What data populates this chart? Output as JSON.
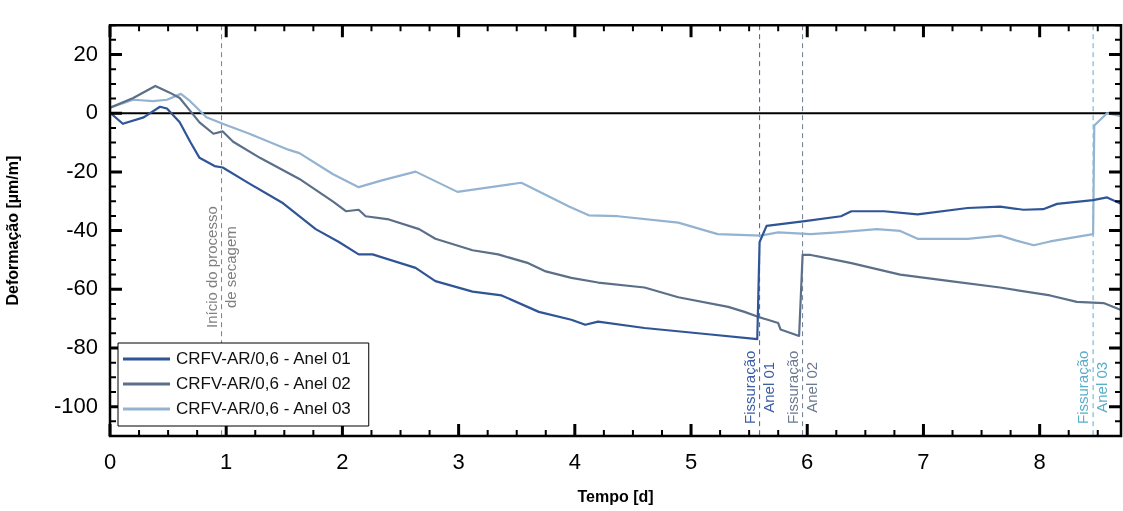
{
  "chart_data": {
    "type": "line",
    "xlabel": "Tempo [d]",
    "ylabel": "Deformação [µm/m]",
    "xlim": [
      0,
      8.7
    ],
    "xticks": [
      0,
      1,
      2,
      3,
      4,
      5,
      6,
      7,
      8
    ],
    "ylim": [
      -110,
      30
    ],
    "yticks": [
      -100,
      -80,
      -60,
      -40,
      -20,
      0,
      20
    ],
    "grid": false,
    "legend": "bottom left",
    "marker": "none",
    "line_style": "solid",
    "series": [
      {
        "name": "CRFV-AR/0,6 - Anel 01",
        "color": "#2f5597",
        "x": [
          0,
          0.11,
          0.29,
          0.43,
          0.49,
          0.6,
          0.69,
          0.77,
          0.9,
          0.97,
          1.2,
          1.49,
          1.77,
          1.97,
          2.14,
          2.26,
          2.63,
          2.8,
          3.12,
          3.37,
          3.69,
          3.97,
          4.09,
          4.2,
          4.6,
          5.17,
          5.57,
          5.59,
          5.65,
          5.98,
          6.29,
          6.38,
          6.66,
          6.95,
          7.38,
          7.66,
          7.86,
          8.03,
          8.15,
          8.46,
          8.58,
          8.69
        ],
        "values": [
          0.2,
          -3.6,
          -1.4,
          2.2,
          1.6,
          -3.1,
          -9.7,
          -15.2,
          -18,
          -18.5,
          -24,
          -30.7,
          -39.5,
          -43.9,
          -48.1,
          -48.1,
          -52.7,
          -57.2,
          -60.8,
          -62.1,
          -67.7,
          -70.4,
          -72.1,
          -71,
          -73.2,
          -75.4,
          -77,
          -43.9,
          -38.4,
          -36.8,
          -35.1,
          -33.4,
          -33.4,
          -34.5,
          -32.3,
          -31.8,
          -32.9,
          -32.7,
          -30.9,
          -29.6,
          -28.7,
          -30.7
        ]
      },
      {
        "name": "CRFV-AR/0,6 - Anel 02",
        "color": "#5c6f89",
        "x": [
          0,
          0.2,
          0.39,
          0.51,
          0.6,
          0.69,
          0.77,
          0.89,
          0.97,
          1.06,
          1.29,
          1.63,
          1.92,
          2.03,
          2.14,
          2.2,
          2.4,
          2.66,
          2.8,
          3.12,
          3.34,
          3.6,
          3.75,
          3.97,
          4.2,
          4.6,
          4.89,
          5.32,
          5.46,
          5.57,
          5.66,
          5.75,
          5.77,
          5.93,
          5.96,
          6.03,
          6.38,
          6.8,
          7.23,
          7.66,
          8.09,
          8.32,
          8.55,
          8.69
        ],
        "values": [
          1.9,
          5.2,
          9.3,
          7.1,
          5.2,
          0.8,
          -3.1,
          -7,
          -6.2,
          -9.7,
          -15.2,
          -22.4,
          -30.1,
          -33.4,
          -32.9,
          -35.1,
          -36.2,
          -39.5,
          -42.8,
          -46.7,
          -48.1,
          -51.1,
          -53.9,
          -56.1,
          -57.7,
          -59.4,
          -62.7,
          -66,
          -67.7,
          -69.3,
          -70.4,
          -71.5,
          -73.7,
          -75.9,
          -48.3,
          -48.3,
          -51.1,
          -55,
          -57.2,
          -59.4,
          -62.1,
          -64.3,
          -64.7,
          -66.9
        ]
      },
      {
        "name": "CRFV-AR/0,6 - Anel 03",
        "color": "#93b3d0",
        "x": [
          0,
          0.2,
          0.37,
          0.49,
          0.61,
          0.69,
          0.83,
          0.97,
          1.2,
          1.54,
          1.63,
          1.92,
          2.14,
          2.34,
          2.63,
          2.99,
          3.54,
          3.95,
          4.12,
          4.37,
          4.89,
          5.23,
          5.6,
          5.75,
          6.03,
          6.26,
          6.6,
          6.8,
          6.95,
          7.38,
          7.66,
          7.8,
          7.95,
          8.09,
          8.46,
          8.47,
          8.58,
          8.69
        ],
        "values": [
          1.9,
          4.6,
          4.1,
          4.6,
          6.6,
          4.1,
          -1.4,
          -3.6,
          -7,
          -12.5,
          -13.6,
          -20.8,
          -25.2,
          -22.9,
          -19.9,
          -26.8,
          -23.7,
          -31.8,
          -34.8,
          -35.1,
          -37.3,
          -41.2,
          -41.7,
          -40.6,
          -41.2,
          -40.6,
          -39.5,
          -40.1,
          -42.8,
          -42.8,
          -41.7,
          -43.4,
          -45,
          -43.7,
          -41.2,
          -4.2,
          0,
          -0.9
        ]
      }
    ],
    "ref_lines": [
      {
        "axis": "y",
        "value": 0,
        "color": "#000000",
        "line_style": "solid"
      },
      {
        "axis": "x",
        "value": 0.96,
        "label": "Início do processo de secagem",
        "color": "#7f7f7f",
        "line_style": "dashed"
      },
      {
        "axis": "x",
        "value": 5.59,
        "label": "Fissuração Anel 01",
        "color": "#3b5ea6",
        "line_style": "dashed"
      },
      {
        "axis": "x",
        "value": 5.96,
        "label": "Fissuração Anel 02",
        "color": "#6b7a90",
        "line_style": "dashed"
      },
      {
        "axis": "x",
        "value": 8.46,
        "label": "Fissuração Anel 03",
        "color": "#5aaec9",
        "line_style": "dashed"
      }
    ]
  }
}
